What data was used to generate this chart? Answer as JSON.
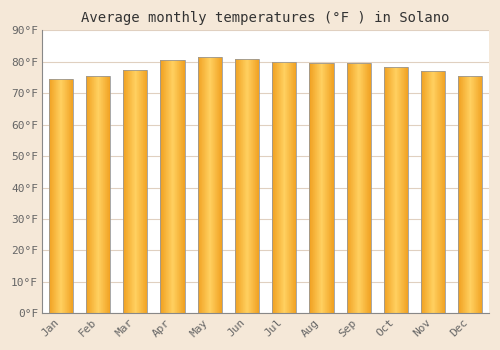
{
  "months": [
    "Jan",
    "Feb",
    "Mar",
    "Apr",
    "May",
    "Jun",
    "Jul",
    "Aug",
    "Sep",
    "Oct",
    "Nov",
    "Dec"
  ],
  "values": [
    74.5,
    75.5,
    77.5,
    80.5,
    81.5,
    81.0,
    80.0,
    79.5,
    79.5,
    78.5,
    77.0,
    75.5
  ],
  "title": "Average monthly temperatures (°F ) in Solano",
  "ylim": [
    0,
    90
  ],
  "yticks": [
    0,
    10,
    20,
    30,
    40,
    50,
    60,
    70,
    80,
    90
  ],
  "ytick_labels": [
    "0°F",
    "10°F",
    "20°F",
    "30°F",
    "40°F",
    "50°F",
    "60°F",
    "70°F",
    "80°F",
    "90°F"
  ],
  "bar_color_center": "#FFD060",
  "bar_color_edge": "#F0A020",
  "bar_outline_color": "#999999",
  "background_color": "#F5E8D8",
  "plot_bg_color": "#FFFFFF",
  "grid_color": "#E0D0C0",
  "title_color": "#333333",
  "tick_color": "#666666",
  "title_fontsize": 10,
  "tick_fontsize": 8,
  "bar_width": 0.65
}
